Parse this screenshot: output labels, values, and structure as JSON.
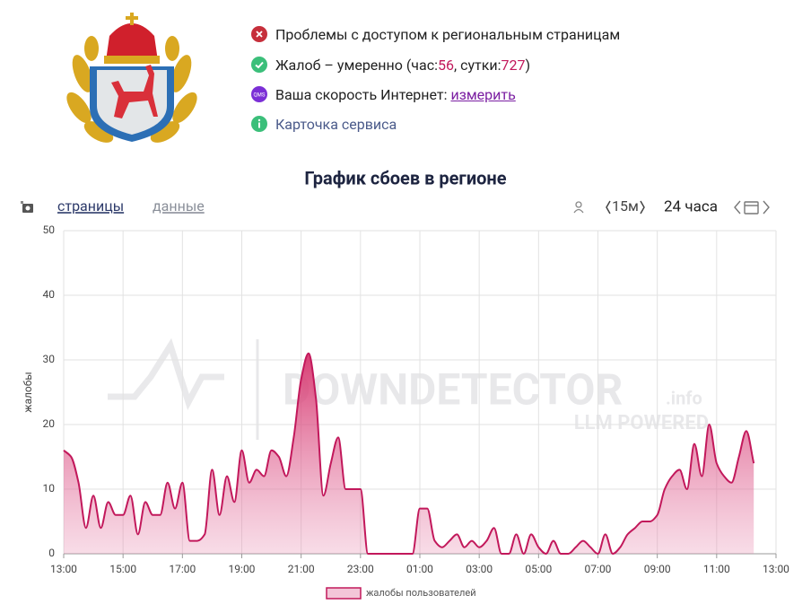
{
  "header": {
    "status": [
      {
        "parts": [
          "Проблемы с доступом к региональным страницам"
        ]
      },
      {
        "parts": [
          "Жалоб – умеренно (час: ",
          56,
          ", сутки: ",
          727,
          ")"
        ]
      },
      {
        "icon": "QMS",
        "parts": [
          "Ваша скорость Интернет: "
        ],
        "link": "измерить"
      },
      {
        "parts": [
          "Карточка сервиса"
        ]
      }
    ]
  },
  "toolbar": {
    "tabs": [
      "страницы",
      "данные"
    ],
    "interval": "15м",
    "range": "24 часа"
  },
  "watermark": {
    "brand": "DOWNDETECTOR",
    "suffix": ".info",
    "tagline": "LLM POWERED"
  },
  "chart_data": {
    "type": "area",
    "title": "График сбоев в регионе",
    "y_label": "жалобы",
    "categories": [
      "13:00",
      "13:15",
      "13:30",
      "13:45",
      "14:00",
      "14:15",
      "14:30",
      "14:45",
      "15:00",
      "15:15",
      "15:30",
      "15:45",
      "16:00",
      "16:15",
      "16:30",
      "16:45",
      "17:00",
      "17:15",
      "17:30",
      "17:45",
      "18:00",
      "18:15",
      "18:30",
      "18:45",
      "19:00",
      "19:15",
      "19:30",
      "19:45",
      "20:00",
      "20:15",
      "20:30",
      "20:45",
      "21:00",
      "21:15",
      "21:30",
      "21:45",
      "22:00",
      "22:15",
      "22:30",
      "22:45",
      "23:00",
      "23:15",
      "23:30",
      "23:45",
      "00:00",
      "00:15",
      "00:30",
      "00:45",
      "01:00",
      "01:15",
      "01:30",
      "01:45",
      "02:00",
      "02:15",
      "02:30",
      "02:45",
      "03:00",
      "03:15",
      "03:30",
      "03:45",
      "04:00",
      "04:15",
      "04:30",
      "04:45",
      "05:00",
      "05:15",
      "05:30",
      "05:45",
      "06:00",
      "06:15",
      "06:30",
      "06:45",
      "07:00",
      "07:15",
      "07:30",
      "07:45",
      "08:00",
      "08:15",
      "08:30",
      "08:45",
      "09:00",
      "09:15",
      "09:30",
      "09:45",
      "10:00",
      "10:15",
      "10:30",
      "10:45",
      "11:00",
      "11:15",
      "11:30",
      "11:45",
      "12:00",
      "12:15",
      "12:30",
      "12:45",
      "13:00"
    ],
    "series": [
      {
        "name": "жалобы пользователей",
        "color": "#c2185b",
        "values": [
          16,
          15,
          11,
          4,
          9,
          4,
          8,
          6,
          6,
          9,
          3,
          8,
          6,
          6,
          11,
          7,
          11,
          2,
          2,
          3,
          13,
          6,
          12,
          8,
          16,
          11,
          13,
          12,
          16,
          15,
          12,
          18,
          27,
          31,
          24,
          9,
          14,
          18,
          10,
          10,
          10,
          0,
          0,
          0,
          0,
          0,
          0,
          0,
          7,
          7,
          2,
          1,
          2,
          3,
          1,
          2,
          1,
          2,
          4,
          0,
          0,
          3,
          0,
          3,
          1,
          0,
          2,
          0,
          0,
          1,
          2,
          1,
          0,
          3,
          0,
          1,
          3,
          4,
          5,
          5,
          6,
          10,
          12,
          13,
          10,
          17,
          12,
          20,
          14,
          12,
          11,
          15,
          19,
          14,
          null,
          null,
          null
        ]
      }
    ],
    "ylim": [
      0,
      50
    ],
    "yticks": [
      0,
      10,
      20,
      30,
      40,
      50
    ],
    "grid": true
  }
}
